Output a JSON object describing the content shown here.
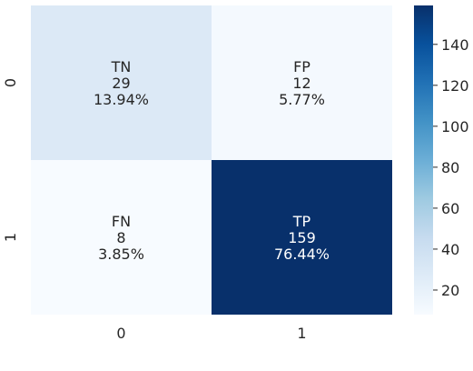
{
  "chart_data": {
    "type": "heatmap",
    "title": "",
    "xlabel": "",
    "ylabel": "",
    "x_categories": [
      "0",
      "1"
    ],
    "y_categories": [
      "0",
      "1"
    ],
    "cells": [
      [
        {
          "label": "TN",
          "count": "29",
          "percent": "13.94%",
          "value": 29
        },
        {
          "label": "FP",
          "count": "12",
          "percent": "5.77%",
          "value": 12
        }
      ],
      [
        {
          "label": "FN",
          "count": "8",
          "percent": "3.85%",
          "value": 8
        },
        {
          "label": "TP",
          "count": "159",
          "percent": "76.44%",
          "value": 159
        }
      ]
    ],
    "colormap": "Blues",
    "value_range": [
      8,
      159
    ],
    "colorbar_ticks": [
      "20",
      "40",
      "60",
      "80",
      "100",
      "120",
      "140"
    ],
    "colorbar_tick_values": [
      20,
      40,
      60,
      80,
      100,
      120,
      140
    ],
    "colors": {
      "cell_00": "#dce9f6",
      "cell_01": "#f4f9fe",
      "cell_10": "#f7fbff",
      "cell_11": "#08306b",
      "text_dark": "#262626",
      "text_light": "#ffffff"
    }
  }
}
